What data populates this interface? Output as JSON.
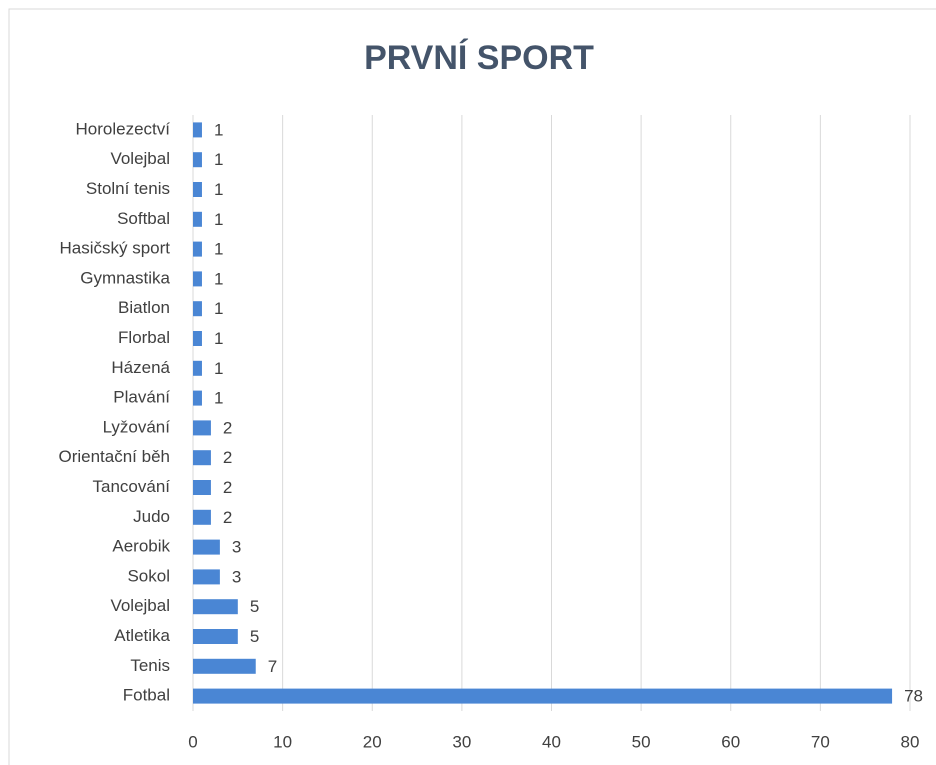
{
  "chart_data": {
    "type": "bar",
    "orientation": "horizontal",
    "title": "PRVNÍ SPORT",
    "categories": [
      "Fotbal",
      "Tenis",
      "Atletika",
      "Volejbal",
      "Sokol",
      "Aerobik",
      "Judo",
      "Tancování",
      "Orientační běh",
      "Lyžování",
      "Plavání",
      "Házená",
      "Florbal",
      "Biatlon",
      "Gymnastika",
      "Hasičský sport",
      "Softbal",
      "Stolní tenis",
      "Volejbal",
      "Horolezectví"
    ],
    "values": [
      78,
      7,
      5,
      5,
      3,
      3,
      2,
      2,
      2,
      2,
      1,
      1,
      1,
      1,
      1,
      1,
      1,
      1,
      1,
      1
    ],
    "color": "#4a86d4",
    "xlim": [
      0,
      80
    ],
    "xticks": [
      0,
      10,
      20,
      30,
      40,
      50,
      60,
      70,
      80
    ],
    "grid": true
  }
}
